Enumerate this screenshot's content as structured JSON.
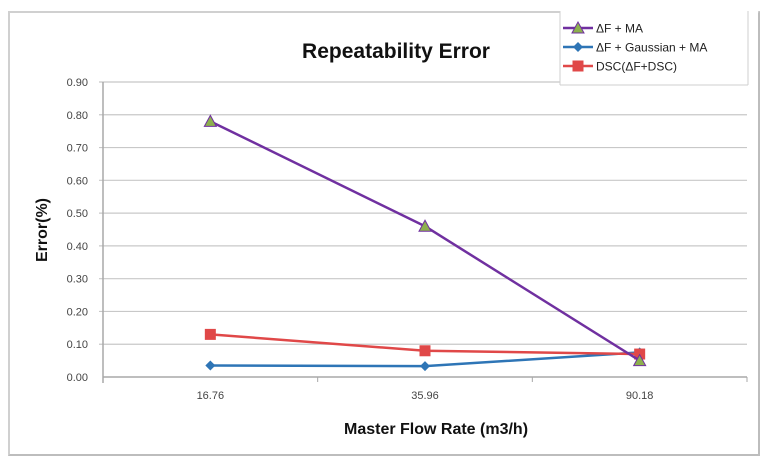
{
  "chart_data": {
    "type": "line",
    "title": "Repeatability Error",
    "xlabel": "Master Flow Rate (m3/h)",
    "ylabel": "Error(%)",
    "categories": [
      "16.76",
      "35.96",
      "90.18"
    ],
    "ylim": [
      0,
      0.9
    ],
    "yticks": [
      "0.00",
      "0.10",
      "0.20",
      "0.30",
      "0.40",
      "0.50",
      "0.60",
      "0.70",
      "0.80",
      "0.90"
    ],
    "grid": true,
    "legend_position": "top-right",
    "series": [
      {
        "name": "ΔF + MA",
        "color": "#7030A0",
        "marker": "triangle",
        "marker_color": "#8DB04E",
        "values": [
          0.78,
          0.46,
          0.05
        ]
      },
      {
        "name": "ΔF + Gaussian + MA",
        "color": "#2E75B6",
        "marker": "diamond",
        "marker_color": "#2E75B6",
        "values": [
          0.035,
          0.033,
          0.075
        ]
      },
      {
        "name": "DSC(ΔF+DSC)",
        "color": "#E04848",
        "marker": "square",
        "marker_color": "#E04848",
        "values": [
          0.13,
          0.08,
          0.07
        ]
      }
    ]
  }
}
